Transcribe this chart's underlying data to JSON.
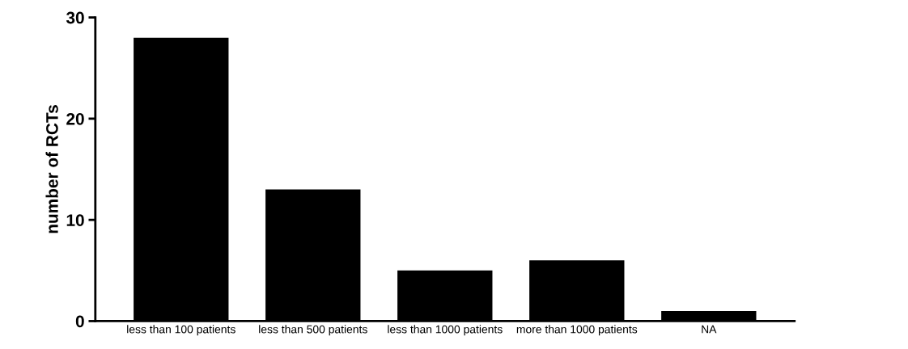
{
  "chart_data": {
    "type": "bar",
    "ylabel": "number of RCTs",
    "categories": [
      "less than 100 patients",
      "less than 500 patients",
      "less than 1000 patients",
      "more than 1000 patients",
      "NA"
    ],
    "values": [
      28,
      13,
      5,
      6,
      1
    ],
    "color": "#000000",
    "ylim": [
      0,
      30
    ],
    "yticks": [
      0,
      10,
      20,
      30
    ],
    "grid": false,
    "legend": false
  }
}
